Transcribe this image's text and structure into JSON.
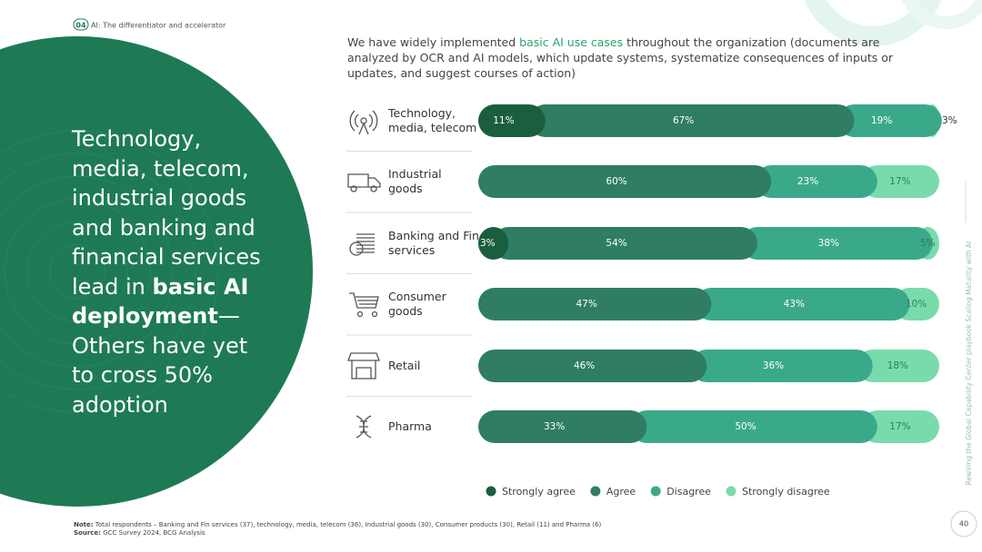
{
  "header": {
    "section": "04",
    "title": "AI: The differentiator and accelerator"
  },
  "headline": {
    "part1": "Technology, media, telecom, industrial goods and banking and financial services lead in ",
    "bold": "basic AI deployment",
    "part2": "—Others have yet to cross 50% adoption"
  },
  "chart_data": {
    "type": "stacked-bar-horizontal",
    "title": {
      "part1": "We have widely implemented ",
      "highlight": "basic AI use cases",
      "part2": " throughout the organization (documents are analyzed by OCR and AI models, which update systems, systematize consequences of inputs or updates, and suggest courses of action)"
    },
    "categories": [
      "Technology, media, telecom",
      "Industrial goods",
      "Banking and Fin services",
      "Consumer goods",
      "Retail",
      "Pharma"
    ],
    "xlim": [
      0,
      100
    ],
    "series": [
      {
        "name": "Strongly agree",
        "color": "#1b5e3f",
        "values": [
          11,
          0,
          3,
          0,
          0,
          0
        ],
        "value_labels": [
          "11%",
          null,
          "3%",
          null,
          null,
          null
        ]
      },
      {
        "name": "Agree",
        "color": "#2e7d64",
        "values": [
          67,
          60,
          54,
          47,
          46,
          33
        ],
        "value_labels": [
          "67%",
          "60%",
          "54%",
          "47%",
          "46%",
          "33%"
        ]
      },
      {
        "name": "Disagree",
        "color": "#3aa98a",
        "values": [
          19,
          23,
          38,
          43,
          36,
          50
        ],
        "value_labels": [
          "19%",
          "23%",
          "38%",
          "43%",
          "36%",
          "50%"
        ]
      },
      {
        "name": "Strongly disagree",
        "color": "#79dbab",
        "values": [
          3,
          17,
          5,
          10,
          18,
          17
        ],
        "value_labels": [
          "3%",
          "17%",
          "5%",
          "10%",
          "18%",
          "17%"
        ]
      }
    ],
    "legend": "bottom"
  },
  "footer": {
    "note_label": "Note:",
    "note": "Total respondents – Banking and Fin services (37), technology, media, telecom (36), Industrial goods (30), Consumer products (30), Retail (11) and Pharma (6)",
    "source_label": "Source:",
    "source": "GCC Survey 2024, BCG Analysis"
  },
  "side_text": "Rewiring the Global Capability Center playbook Scaling Maturity with AI",
  "page_number": "40"
}
